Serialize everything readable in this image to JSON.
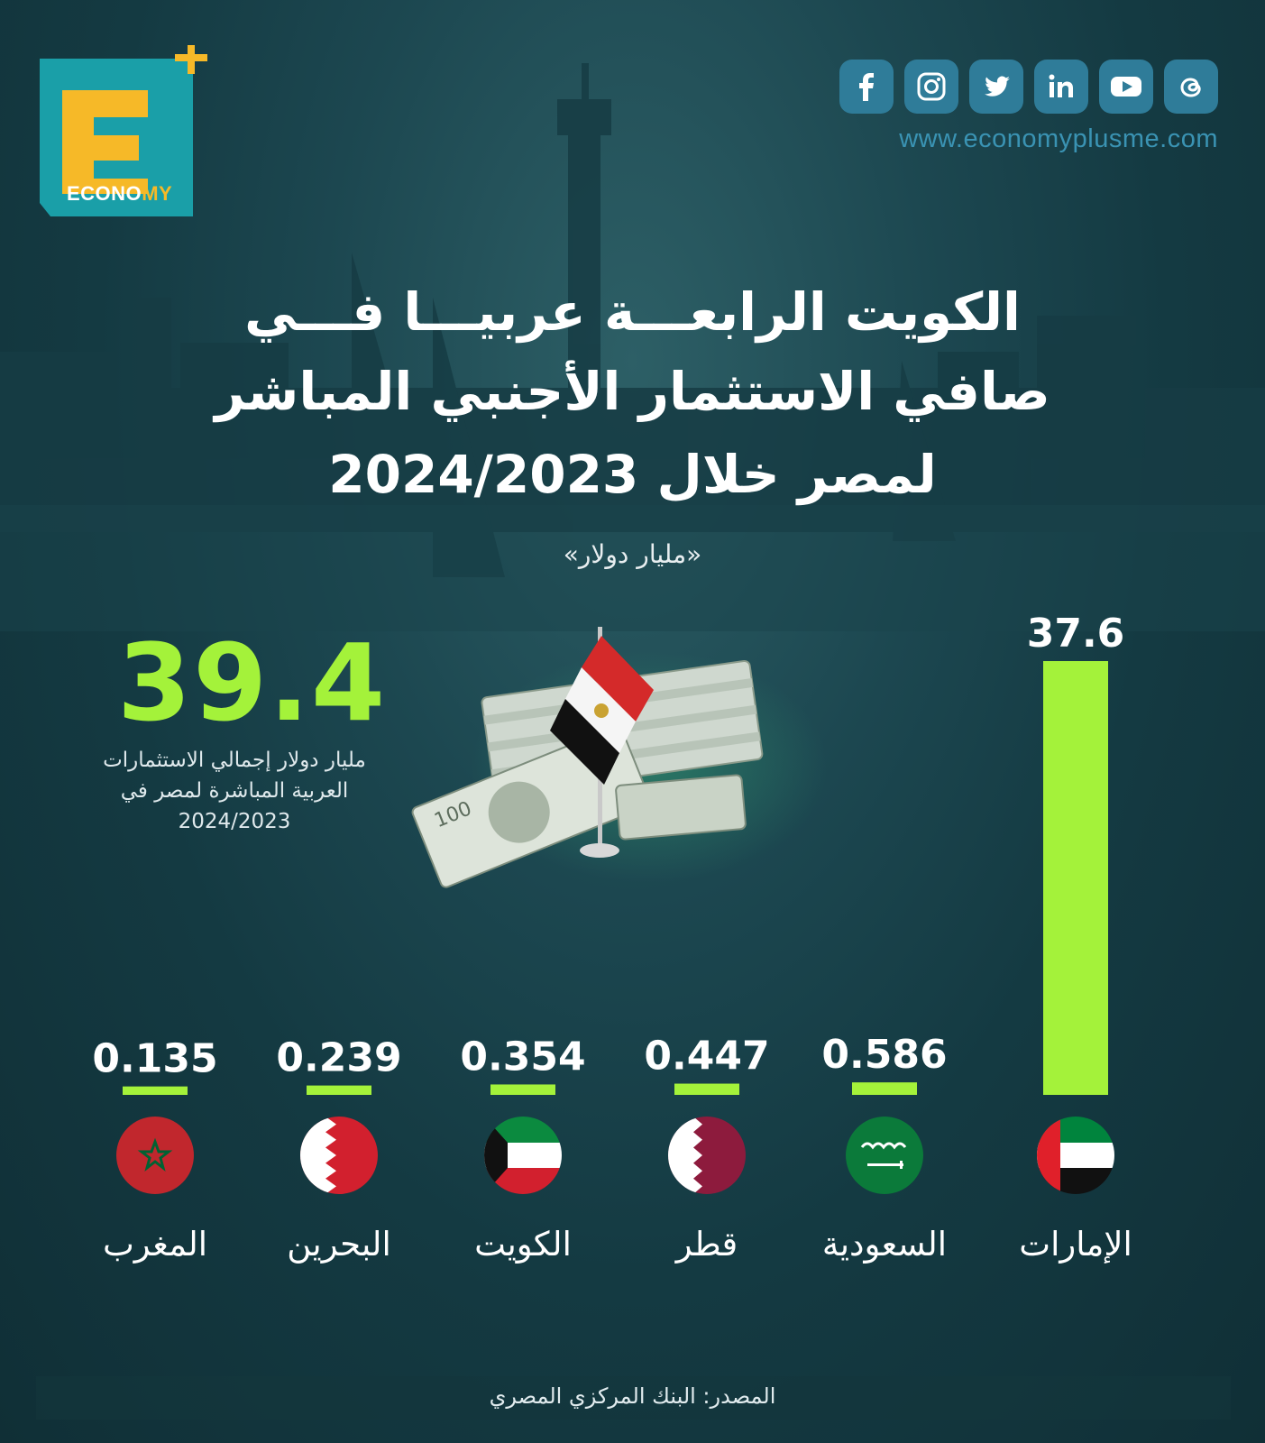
{
  "logo": {
    "word_part1": "ECONO",
    "word_part2": "MY"
  },
  "social_icons": [
    "facebook-icon",
    "instagram-icon",
    "twitter-icon",
    "linkedin-icon",
    "youtube-icon",
    "threads-icon"
  ],
  "website": "www.economyplusme.com",
  "title": {
    "line1": "الكويت الرابعـــة عربيـــا فـــي",
    "line2": "صافي الاستثمار الأجنبي المباشر",
    "line3": "لمصر خلال 2024/2023"
  },
  "unit": "«مليار دولار»",
  "total": {
    "value": "39.4",
    "desc_line1": "مليار دولار إجمالي الاستثمارات",
    "desc_line2": "العربية المباشرة لمصر في",
    "desc_line3": "2024/2023"
  },
  "chart_data": {
    "type": "bar",
    "categories": [
      "الإمارات",
      "السعودية",
      "قطر",
      "الكويت",
      "البحرين",
      "المغرب"
    ],
    "values": [
      37.6,
      0.586,
      0.447,
      0.354,
      0.239,
      0.135
    ],
    "value_labels": [
      "37.6",
      "0.586",
      "0.447",
      "0.354",
      "0.239",
      "0.135"
    ],
    "ylim": [
      0,
      37.6
    ],
    "bar_color": "#a4f23a",
    "flags": [
      "uae-flag-icon",
      "saudi-flag-icon",
      "qatar-flag-icon",
      "kuwait-flag-icon",
      "bahrain-flag-icon",
      "morocco-flag-icon"
    ]
  },
  "source": "المصدر: البنك المركزي المصري",
  "colors": {
    "accent": "#a4f23a",
    "background": "#143a42",
    "social": "#2f7c99"
  }
}
